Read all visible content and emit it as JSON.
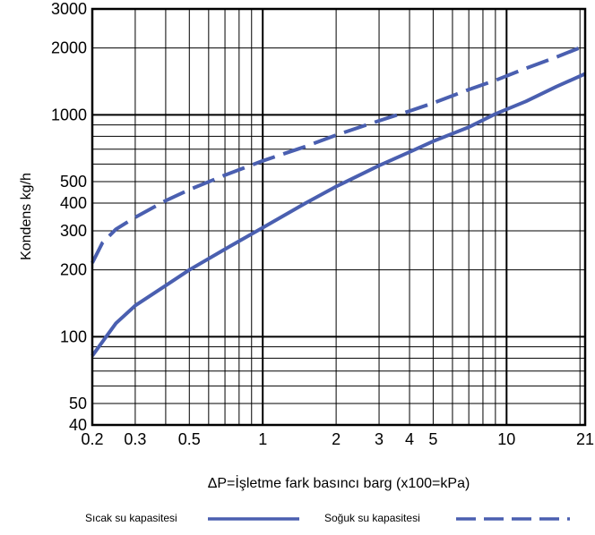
{
  "chart_data": {
    "type": "line",
    "title": "",
    "xlabel": "ΔP=İşletme fark basıncı barg (x100=kPa)",
    "ylabel": "Kondens kg/h",
    "x_scale": "log",
    "y_scale": "log",
    "xlim": [
      0.2,
      21
    ],
    "ylim": [
      40,
      3000
    ],
    "grid": true,
    "legend_position": "bottom",
    "x_ticks": [
      0.2,
      0.3,
      0.5,
      1,
      2,
      3,
      4,
      5,
      10,
      21
    ],
    "x_tick_labels": [
      "0.2",
      "0.3",
      "0.5",
      "1",
      "2",
      "3",
      "4",
      "5",
      "10",
      "21"
    ],
    "y_ticks": [
      40,
      50,
      100,
      200,
      300,
      400,
      500,
      1000,
      2000,
      3000
    ],
    "y_tick_labels": [
      "40",
      "50",
      "100",
      "200",
      "300",
      "400",
      "500",
      "1000",
      "2000",
      "3000"
    ],
    "series": [
      {
        "name": "Sıcak su kapasitesi",
        "style": "solid",
        "color": "#4a5fb0",
        "x": [
          0.2,
          0.25,
          0.3,
          0.4,
          0.5,
          0.7,
          1,
          1.5,
          2,
          3,
          4,
          5,
          7,
          9,
          12,
          16,
          21
        ],
        "y": [
          82,
          115,
          138,
          170,
          200,
          248,
          310,
          400,
          475,
          590,
          680,
          760,
          880,
          1010,
          1150,
          1340,
          1530
        ]
      },
      {
        "name": "Soğuk su kapasitesi",
        "style": "dashed",
        "color": "#4a5fb0",
        "x": [
          0.2,
          0.22,
          0.25,
          0.3,
          0.4,
          0.5,
          0.7,
          1,
          1.5,
          2,
          3,
          4,
          5,
          7,
          9,
          12,
          16,
          21
        ],
        "y": [
          215,
          265,
          305,
          345,
          410,
          460,
          535,
          620,
          720,
          810,
          940,
          1040,
          1130,
          1300,
          1430,
          1620,
          1820,
          2050
        ]
      }
    ]
  },
  "legend": {
    "hot_label": "Sıcak su kapasitesi",
    "cold_label": "Soğuk su kapasitesi"
  }
}
